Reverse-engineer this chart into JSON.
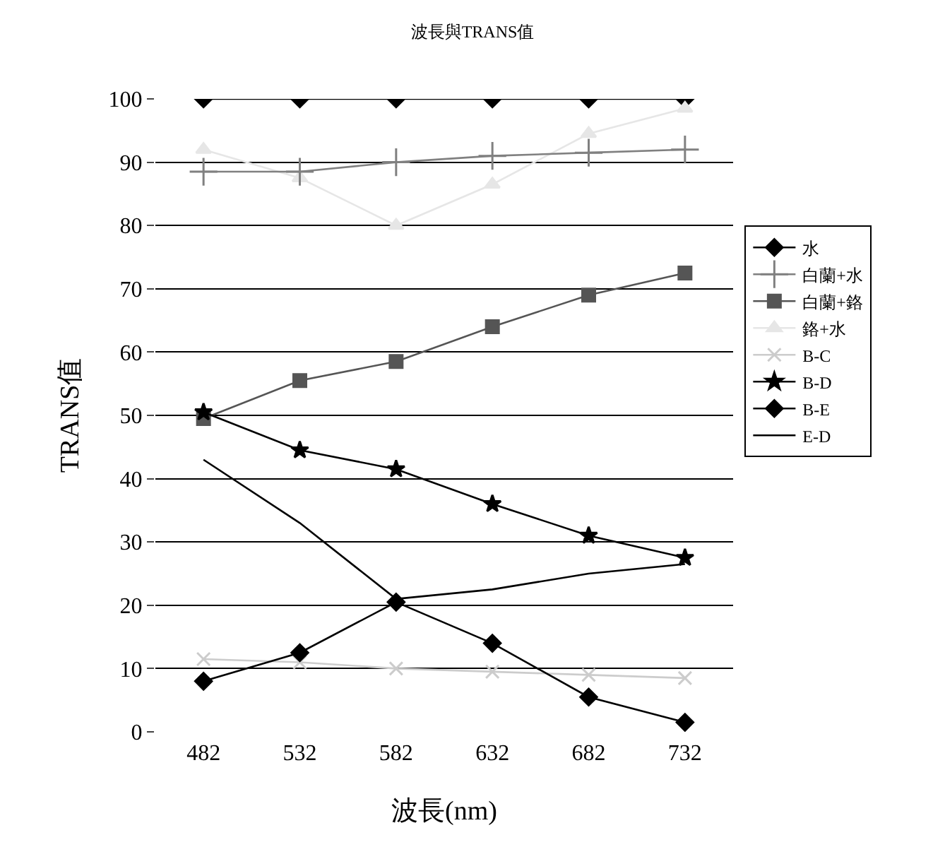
{
  "chart_data": {
    "type": "line",
    "title": "波長與TRANS值",
    "xlabel": "波長(nm)",
    "ylabel": "TRANS值",
    "categories": [
      "482",
      "532",
      "582",
      "632",
      "682",
      "732"
    ],
    "ylim": [
      0,
      100
    ],
    "yticks": [
      0,
      10,
      20,
      30,
      40,
      50,
      60,
      70,
      80,
      90,
      100
    ],
    "grid": "y",
    "legend": "right",
    "series": [
      {
        "name": "水",
        "color": "#000000",
        "marker": "diamond",
        "values": [
          100,
          100,
          100,
          100,
          100,
          100
        ]
      },
      {
        "name": "白蘭+水",
        "color": "#808080",
        "marker": "cross",
        "values": [
          88.5,
          88.5,
          90,
          91,
          91.5,
          92
        ]
      },
      {
        "name": "白蘭+鉻",
        "color": "#555555",
        "marker": "square",
        "values": [
          49.5,
          55.5,
          58.5,
          64,
          69,
          72.5
        ]
      },
      {
        "name": "鉻+水",
        "color": "#e6e6e6",
        "marker": "triangle",
        "values": [
          92,
          87.5,
          80,
          86.5,
          94.5,
          98.5
        ]
      },
      {
        "name": "B-C",
        "color": "#cccccc",
        "marker": "x",
        "values": [
          11.5,
          11,
          10,
          9.5,
          9,
          8.5
        ]
      },
      {
        "name": "B-D",
        "color": "#000000",
        "marker": "star",
        "values": [
          50.5,
          44.5,
          41.5,
          36,
          31,
          27.5
        ]
      },
      {
        "name": "B-E",
        "color": "#000000",
        "marker": "diamond",
        "values": [
          8,
          12.5,
          20.5,
          14,
          5.5,
          1.5
        ]
      },
      {
        "name": "E-D",
        "color": "#000000",
        "marker": "none",
        "values": [
          43,
          33,
          21,
          22.5,
          25,
          26.5
        ]
      }
    ]
  }
}
